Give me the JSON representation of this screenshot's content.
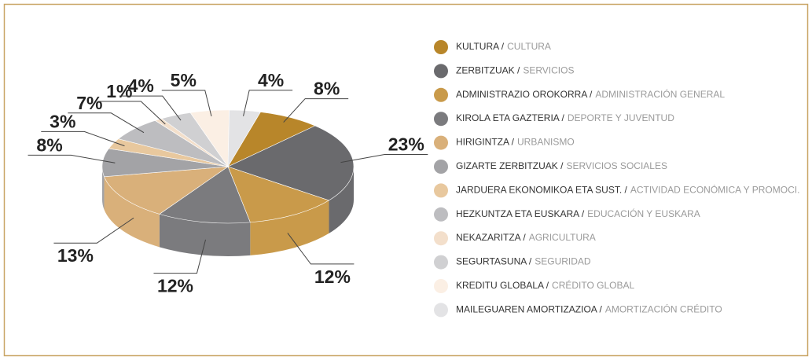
{
  "chart_data": {
    "type": "pie",
    "categories": [
      "KULTURA /",
      "ZERBITZUAK /",
      "ADMINISTRAZIO OROKORRA /",
      "KIROLA ETA GAZTERIA /",
      "HIRIGINTZA /",
      "GIZARTE ZERBITZUAK /",
      "JARDUERA EKONOMIKOA ETA SUST. /",
      "HEZKUNTZA ETA EUSKARA /",
      "NEKAZARITZA /",
      "SEGURTASUNA /",
      "KREDITU GLOBALA /",
      "MAILEGUAREN AMORTIZAZIOA /"
    ],
    "translations": [
      "CULTURA",
      "SERVICIOS",
      "ADMINISTRACIÓN GENERAL",
      "DEPORTE Y JUVENTUD",
      "URBANISMO",
      "SERVICIOS SOCIALES",
      "ACTIVIDAD ECONÓMICA Y PROMOCI.",
      "EDUCACIÓN Y EUSKARA",
      "AGRICULTURA",
      "SEGURIDAD",
      "CRÉDITO GLOBAL",
      "AMORTIZACIÓN CRÉDITO"
    ],
    "values": [
      8,
      23,
      12,
      12,
      13,
      8,
      3,
      7,
      1,
      4,
      5,
      4
    ],
    "value_labels": [
      "8%",
      "23%",
      "12%",
      "12%",
      "13%",
      "8%",
      "3%",
      "7%",
      "1%",
      "4%",
      "5%",
      "4%"
    ],
    "colors": [
      "#b8862a",
      "#6a6a6d",
      "#c99a4a",
      "#7b7b7e",
      "#d9b07a",
      "#a3a3a6",
      "#e8c89e",
      "#bdbdc0",
      "#f3dfcb",
      "#d0d0d2",
      "#fbefe4",
      "#e3e3e5"
    ]
  }
}
